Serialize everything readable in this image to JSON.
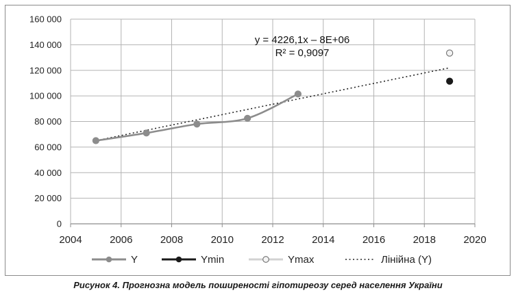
{
  "caption": "Рисунок 4. Прогнозна модель поширеності гіпотиреозу серед населення України",
  "chart_data": {
    "type": "scatter",
    "title": "",
    "xlabel": "",
    "ylabel": "",
    "xlim": [
      2004,
      2020
    ],
    "ylim": [
      0,
      160000
    ],
    "x_ticks": [
      "2004",
      "2006",
      "2008",
      "2010",
      "2012",
      "2014",
      "2016",
      "2018",
      "2020"
    ],
    "y_ticks": [
      "0",
      "20 000",
      "40 000",
      "60 000",
      "80 000",
      "100 000",
      "120 000",
      "140 000",
      "160 000"
    ],
    "grid": true,
    "legend_position": "bottom",
    "series": [
      {
        "name": "Y",
        "style": "smooth-line-markers",
        "color": "#8c8c8c",
        "points": [
          [
            2005,
            65000
          ],
          [
            2007,
            71000
          ],
          [
            2009,
            78000
          ],
          [
            2011,
            82500
          ],
          [
            2013,
            101500
          ]
        ]
      },
      {
        "name": "Ymin",
        "style": "marker",
        "color": "#1a1a1a",
        "points": [
          [
            2019,
            111500
          ]
        ]
      },
      {
        "name": "Ymax",
        "style": "hollow-marker",
        "color": "#bfbfbf",
        "points": [
          [
            2019,
            133500
          ]
        ]
      }
    ],
    "trendline": {
      "name": "Лінійна (Y)",
      "x_range": [
        2005,
        2019
      ],
      "y_range": [
        65000,
        122000
      ]
    },
    "annotation": {
      "equation": "y = 4226,1x – 8E+06",
      "r2": "R² = 0,9097"
    },
    "legend": [
      "Y",
      "Ymin",
      "Ymax",
      "Лінійна (Y)"
    ]
  }
}
